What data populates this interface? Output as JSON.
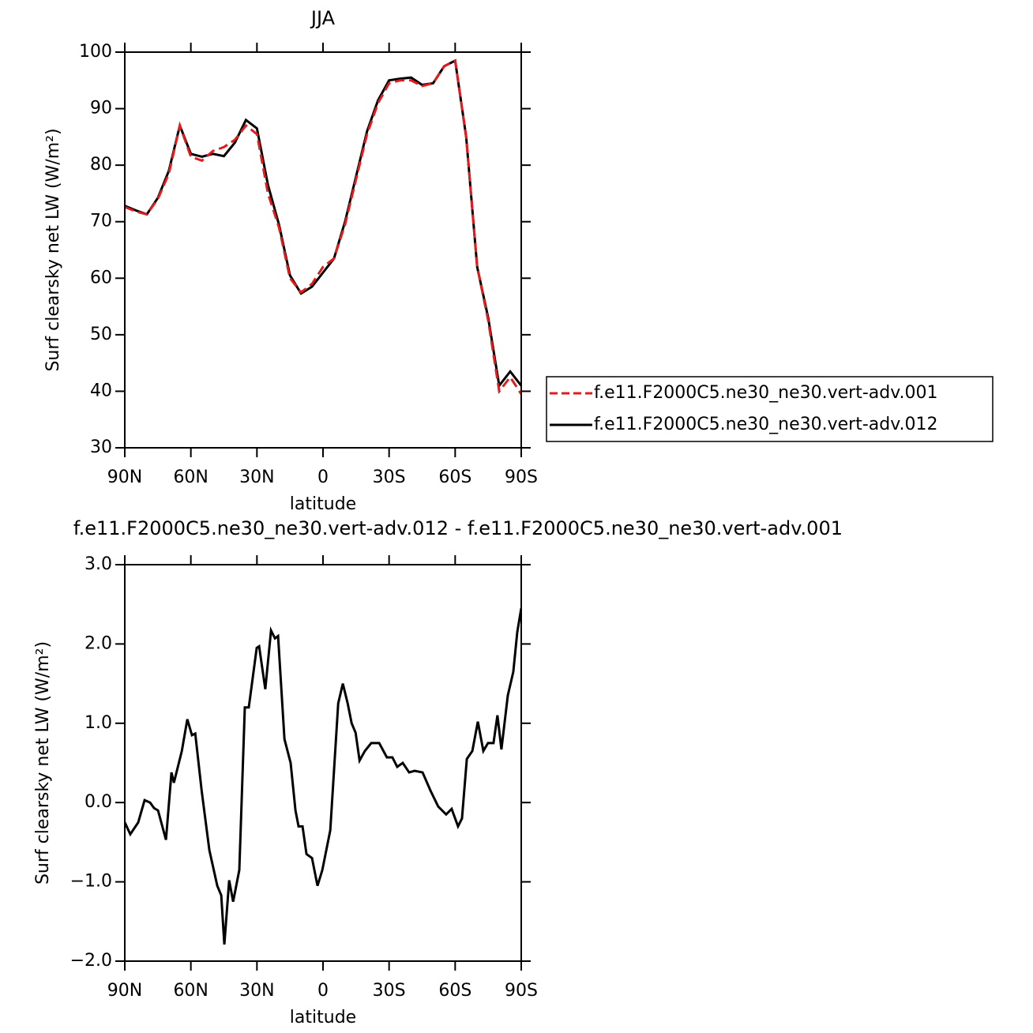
{
  "chart_data": [
    {
      "type": "line",
      "title": "JJA",
      "xlabel": "latitude",
      "ylabel": "Surf clearsky net LW (W/m²)",
      "x": [
        90,
        85,
        80,
        75,
        70,
        65,
        60,
        55,
        50,
        45,
        40,
        35,
        30,
        25,
        20,
        15,
        10,
        5,
        0,
        -5,
        -10,
        -15,
        -20,
        -25,
        -30,
        -35,
        -40,
        -45,
        -50,
        -55,
        -60,
        -65,
        -70,
        -75,
        -80,
        -85,
        -90
      ],
      "series": [
        {
          "name": "f.e11.F2000C5.ne30_ne30.vert-adv.001",
          "color": "#e41a1c",
          "dashed": true,
          "values": [
            72.6,
            71.8,
            71.3,
            74.0,
            78.5,
            87.0,
            81.5,
            80.8,
            82.5,
            83.2,
            84.5,
            87.0,
            85.5,
            75.0,
            69.0,
            60.0,
            57.5,
            59.0,
            62.0,
            63.5,
            69.5,
            77.5,
            85.5,
            91.0,
            94.5,
            95.0,
            95.0,
            94.0,
            94.5,
            97.5,
            98.5,
            85.0,
            62.0,
            52.5,
            40.0,
            42.5,
            39.5
          ]
        },
        {
          "name": "f.e11.F2000C5.ne30_ne30.vert-adv.012",
          "color": "#000000",
          "dashed": false,
          "values": [
            72.8,
            72.0,
            71.3,
            74.2,
            79.0,
            87.0,
            82.0,
            81.5,
            82.0,
            81.6,
            84.0,
            88.0,
            86.5,
            76.5,
            69.5,
            60.5,
            57.3,
            58.5,
            61.0,
            63.5,
            70.0,
            78.0,
            86.0,
            91.5,
            95.0,
            95.3,
            95.5,
            94.2,
            94.5,
            97.5,
            98.5,
            85.0,
            62.0,
            53.0,
            41.0,
            43.5,
            41.0
          ]
        }
      ],
      "xlim": [
        90,
        -90
      ],
      "xticks": [
        {
          "value": 90,
          "label": "90N"
        },
        {
          "value": 60,
          "label": "60N"
        },
        {
          "value": 30,
          "label": "30N"
        },
        0,
        {
          "value": -30,
          "label": "30S"
        },
        {
          "value": -60,
          "label": "60S"
        },
        {
          "value": -90,
          "label": "90S"
        }
      ],
      "ylim": [
        30,
        100
      ],
      "yticks": [
        30,
        40,
        50,
        60,
        70,
        80,
        90,
        100
      ],
      "legend": "right"
    },
    {
      "type": "line",
      "title": "f.e11.F2000C5.ne30_ne30.vert-adv.012 - f.e11.F2000C5.ne30_ne30.vert-adv.001",
      "xlabel": "latitude",
      "ylabel": "Surf clearsky net LW (W/m²)",
      "x": [
        90,
        87.5,
        83.9,
        81.0,
        78.5,
        76.7,
        74.9,
        71.3,
        68.8,
        67.7,
        64.1,
        61.6,
        59.5,
        58.0,
        55.1,
        51.6,
        48.0,
        46.2,
        44.8,
        42.6,
        40.8,
        38.0,
        35.5,
        33.7,
        30.1,
        29.0,
        26.2,
        23.6,
        21.8,
        20.4,
        17.5,
        14.7,
        12.5,
        11.1,
        9.3,
        7.5,
        5.0,
        2.5,
        0.3,
        -3.3,
        -6.9,
        -9.0,
        -11.2,
        -13.0,
        -14.8,
        -16.6,
        -19.0,
        -21.9,
        -25.5,
        -29.0,
        -31.5,
        -33.7,
        -36.2,
        -39.1,
        -41.6,
        -45.2,
        -48.8,
        -52.3,
        -55.9,
        -58.4,
        -61.3,
        -63.1,
        -65.3,
        -67.8,
        -70.3,
        -72.8,
        -74.9,
        -77.4,
        -79.2,
        -81.0,
        -83.9,
        -86.4,
        -88.2,
        -90
      ],
      "series": [
        {
          "color": "#000000",
          "dashed": false,
          "values": [
            -0.25,
            -0.4,
            -0.25,
            0.03,
            0.0,
            -0.07,
            -0.1,
            -0.47,
            0.38,
            0.25,
            0.65,
            1.05,
            0.85,
            0.87,
            0.15,
            -0.6,
            -1.05,
            -1.17,
            -1.79,
            -0.98,
            -1.25,
            -0.85,
            1.2,
            1.2,
            1.95,
            1.97,
            1.43,
            2.17,
            2.07,
            2.1,
            0.8,
            0.5,
            -0.1,
            -0.3,
            -0.3,
            -0.65,
            -0.7,
            -1.05,
            -0.85,
            -0.35,
            1.25,
            1.5,
            1.25,
            1.0,
            0.88,
            0.53,
            0.65,
            0.75,
            0.75,
            0.57,
            0.57,
            0.45,
            0.5,
            0.38,
            0.4,
            0.38,
            0.15,
            -0.05,
            -0.15,
            -0.08,
            -0.3,
            -0.2,
            0.55,
            0.65,
            1.02,
            0.65,
            0.75,
            0.75,
            1.1,
            0.67,
            1.35,
            1.65,
            2.15,
            2.45
          ]
        }
      ],
      "xlim": [
        90,
        -90
      ],
      "xticks": [
        {
          "value": 90,
          "label": "90N"
        },
        {
          "value": 60,
          "label": "60N"
        },
        {
          "value": 30,
          "label": "30N"
        },
        0,
        {
          "value": -30,
          "label": "30S"
        },
        {
          "value": -60,
          "label": "60S"
        },
        {
          "value": -90,
          "label": "90S"
        }
      ],
      "ylim": [
        -2,
        3
      ],
      "yticks": [
        {
          "value": -2,
          "label": "−2.0"
        },
        {
          "value": -1,
          "label": "−1.0"
        },
        {
          "value": 0,
          "label": "0.0"
        },
        {
          "value": 1,
          "label": "1.0"
        },
        {
          "value": 2,
          "label": "2.0"
        },
        {
          "value": 3,
          "label": "3.0"
        }
      ]
    }
  ]
}
